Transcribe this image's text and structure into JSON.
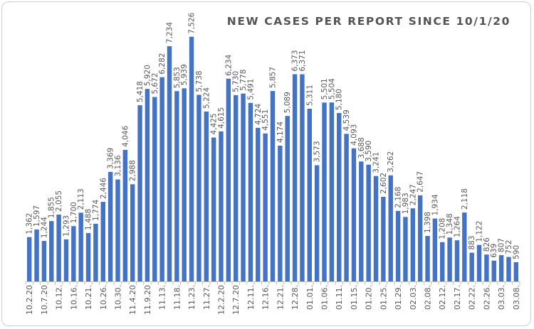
{
  "chart_data": {
    "type": "bar",
    "title": "NEW CASES PER REPORT SINCE 10/1/20",
    "xlabel": "",
    "ylabel": "",
    "ylim": [
      0,
      8000
    ],
    "grid": false,
    "legend": "none",
    "bar_color": "#4472C4",
    "categories": [
      "10.2.20",
      "",
      "10.7.20",
      "",
      "10.12.",
      "",
      "10.16.",
      "",
      "10.21.",
      "",
      "10.26.",
      "",
      "10.30.",
      "",
      "11.4.20",
      "",
      "11.9.20",
      "",
      "11.13.",
      "",
      "11.18.",
      "",
      "11.23.",
      "",
      "11.27.",
      "",
      "12.2.20",
      "",
      "12.7.20",
      "",
      "12.11.",
      "",
      "12.16.",
      "",
      "12.21.",
      "",
      "12.28.",
      "",
      "01.01.",
      "",
      "01.06.",
      "",
      "01.11.",
      "",
      "01.15.",
      "",
      "01.20.",
      "",
      "01.25.",
      "",
      "01.29.",
      "",
      "02.03.",
      "",
      "02.08.",
      "",
      "02.12.",
      "",
      "02.17.",
      "",
      "02.22.",
      "",
      "02.26.",
      "",
      "03.03.",
      "",
      "03.08."
    ],
    "values": [
      1362,
      1597,
      1244,
      1855,
      2055,
      1293,
      1700,
      2113,
      1488,
      1774,
      2446,
      3369,
      3136,
      4046,
      2988,
      5418,
      5920,
      5672,
      6282,
      7234,
      5853,
      5939,
      7526,
      5738,
      5224,
      4425,
      4615,
      6234,
      5730,
      5778,
      5491,
      4724,
      4551,
      5857,
      4174,
      5089,
      6373,
      6371,
      5311,
      3573,
      5501,
      5504,
      5180,
      4539,
      4093,
      3688,
      3590,
      3241,
      2602,
      3262,
      2168,
      1983,
      2247,
      2647,
      1398,
      1934,
      1208,
      1348,
      1264,
      2118,
      883,
      1122,
      826,
      639,
      807,
      752,
      590
    ],
    "value_labels": [
      "1,362",
      "1,597",
      "1,244",
      "1,855",
      "2,055",
      "1,293",
      "1,700",
      "2,113",
      "1,488",
      "1,774",
      "2,446",
      "3,369",
      "3,136",
      "4,046",
      "2,988",
      "5,418",
      "5,920",
      "5,672",
      "6,282",
      "7,234",
      "5,853",
      "5,939",
      "7,526",
      "5,738",
      "5,224",
      "4,425",
      "4,615",
      "6,234",
      "5,730",
      "5,778",
      "5,491",
      "4,724",
      "4,551",
      "5,857",
      "4,174",
      "5,089",
      "6,373",
      "6,371",
      "5,311",
      "3,573",
      "5,501",
      "5,504",
      "5,180",
      "4,539",
      "4,093",
      "3,688",
      "3,590",
      "3,241",
      "2,602",
      "3,262",
      "2,168",
      "1,983",
      "2,247",
      "2,647",
      "1,398",
      "1,934",
      "1,208",
      "1,348",
      "1,264",
      "2,118",
      "883",
      "1,122",
      "826",
      "639",
      "807",
      "752",
      "590"
    ]
  }
}
